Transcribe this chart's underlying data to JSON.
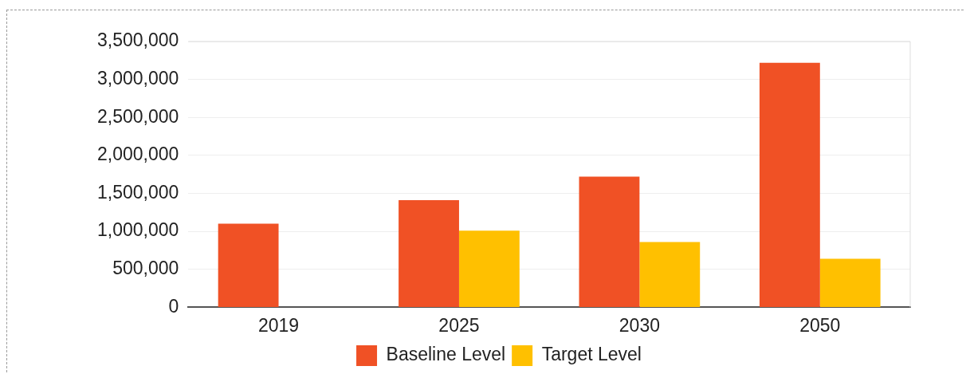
{
  "chart_data": {
    "type": "bar",
    "categories": [
      "2019",
      "2025",
      "2030",
      "2050"
    ],
    "series": [
      {
        "name": "Baseline Level",
        "color": "#f05125",
        "values": [
          1100000,
          1410000,
          1720000,
          3220000
        ]
      },
      {
        "name": "Target Level",
        "color": "#ffc000",
        "values": [
          null,
          1010000,
          860000,
          640000
        ]
      }
    ],
    "ylim": [
      0,
      3500000
    ],
    "yticks": [
      {
        "value": 0,
        "label": "0"
      },
      {
        "value": 500000,
        "label": "500,000"
      },
      {
        "value": 1000000,
        "label": "1,000,000"
      },
      {
        "value": 1500000,
        "label": "1,500,000"
      },
      {
        "value": 2000000,
        "label": "2,000,000"
      },
      {
        "value": 2500000,
        "label": "2,500,000"
      },
      {
        "value": 3000000,
        "label": "3,000,000"
      },
      {
        "value": 3500000,
        "label": "3,500,000"
      }
    ],
    "grid": "y",
    "legend": "bottom"
  }
}
